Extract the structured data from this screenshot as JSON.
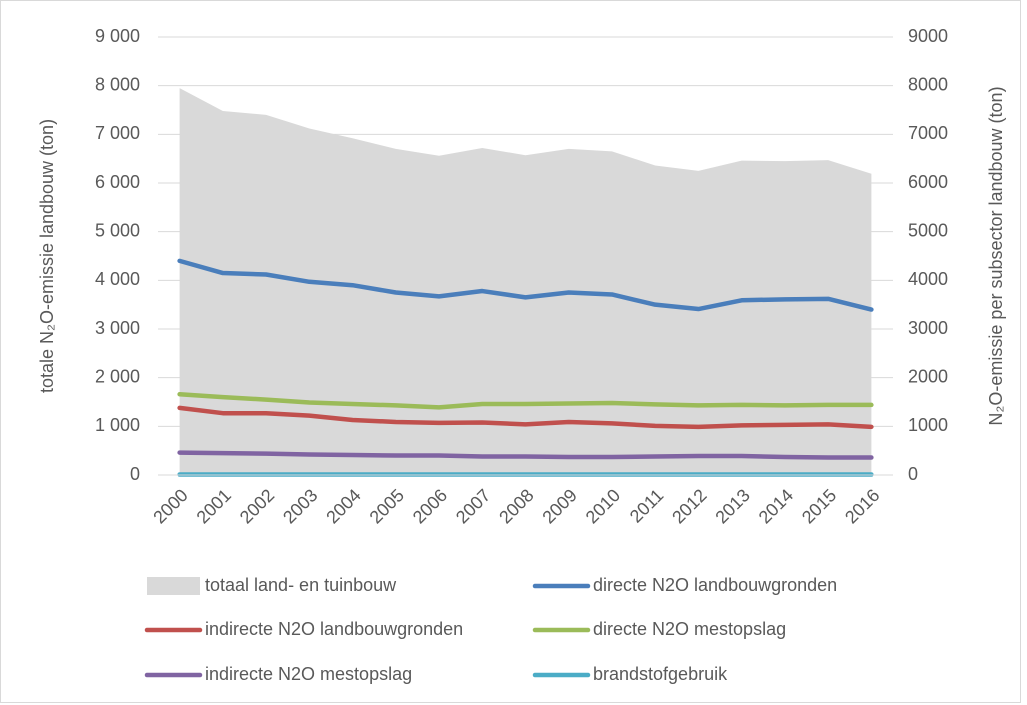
{
  "chart_data": {
    "type": "line",
    "y_label": "totale N₂O-emissie landbouw (ton)",
    "y2_label": "N₂O-emissie per subsector landbouw (ton)",
    "categories": [
      "2000",
      "2001",
      "2002",
      "2003",
      "2004",
      "2005",
      "2006",
      "2007",
      "2008",
      "2009",
      "2010",
      "2011",
      "2012",
      "2013",
      "2014",
      "2015",
      "2016"
    ],
    "series": [
      {
        "name": "totaal land- en tuinbouw",
        "type": "area",
        "color": "#d9d9d9",
        "values": [
          7950,
          7480,
          7400,
          7120,
          6920,
          6700,
          6560,
          6720,
          6570,
          6700,
          6650,
          6360,
          6250,
          6460,
          6450,
          6470,
          6190
        ]
      },
      {
        "name": "directe N2O landbouwgronden",
        "color": "#4a7ebb",
        "axis": "y2",
        "values": [
          4400,
          4150,
          4120,
          3970,
          3900,
          3750,
          3670,
          3780,
          3650,
          3750,
          3710,
          3500,
          3410,
          3590,
          3610,
          3620,
          3400
        ]
      },
      {
        "name": "indirecte N2O landbouwgronden",
        "color": "#c0504d",
        "axis": "y2",
        "values": [
          1380,
          1270,
          1270,
          1220,
          1130,
          1090,
          1070,
          1080,
          1040,
          1090,
          1060,
          1010,
          990,
          1020,
          1030,
          1040,
          990
        ]
      },
      {
        "name": "directe N2O mestopslag",
        "color": "#9bbb59",
        "axis": "y2",
        "values": [
          1660,
          1600,
          1550,
          1490,
          1460,
          1430,
          1390,
          1460,
          1460,
          1470,
          1480,
          1450,
          1430,
          1440,
          1430,
          1440,
          1440
        ]
      },
      {
        "name": "indirecte N2O mestopslag",
        "color": "#8064a2",
        "axis": "y2",
        "values": [
          460,
          450,
          440,
          420,
          410,
          400,
          400,
          380,
          380,
          370,
          370,
          380,
          390,
          390,
          370,
          360,
          360
        ]
      },
      {
        "name": "brandstofgebruik",
        "color": "#4bacc6",
        "axis": "y2",
        "values": [
          10,
          10,
          10,
          10,
          10,
          10,
          10,
          10,
          10,
          10,
          10,
          10,
          10,
          10,
          10,
          10,
          10
        ]
      }
    ],
    "ylim": [
      0,
      9000
    ],
    "yticks": [
      {
        "value": 0,
        "label": "0"
      },
      {
        "value": 1000,
        "label": "1 000"
      },
      {
        "value": 2000,
        "label": "2 000"
      },
      {
        "value": 3000,
        "label": "3 000"
      },
      {
        "value": 4000,
        "label": "4 000"
      },
      {
        "value": 5000,
        "label": "5 000"
      },
      {
        "value": 6000,
        "label": "6 000"
      },
      {
        "value": 7000,
        "label": "7 000"
      },
      {
        "value": 8000,
        "label": "8 000"
      },
      {
        "value": 9000,
        "label": "9 000"
      }
    ],
    "y2lim": [
      0,
      9000
    ],
    "y2ticks": [
      0,
      1000,
      2000,
      3000,
      4000,
      5000,
      6000,
      7000,
      8000,
      9000
    ],
    "grid": true,
    "legend": "bottom"
  }
}
